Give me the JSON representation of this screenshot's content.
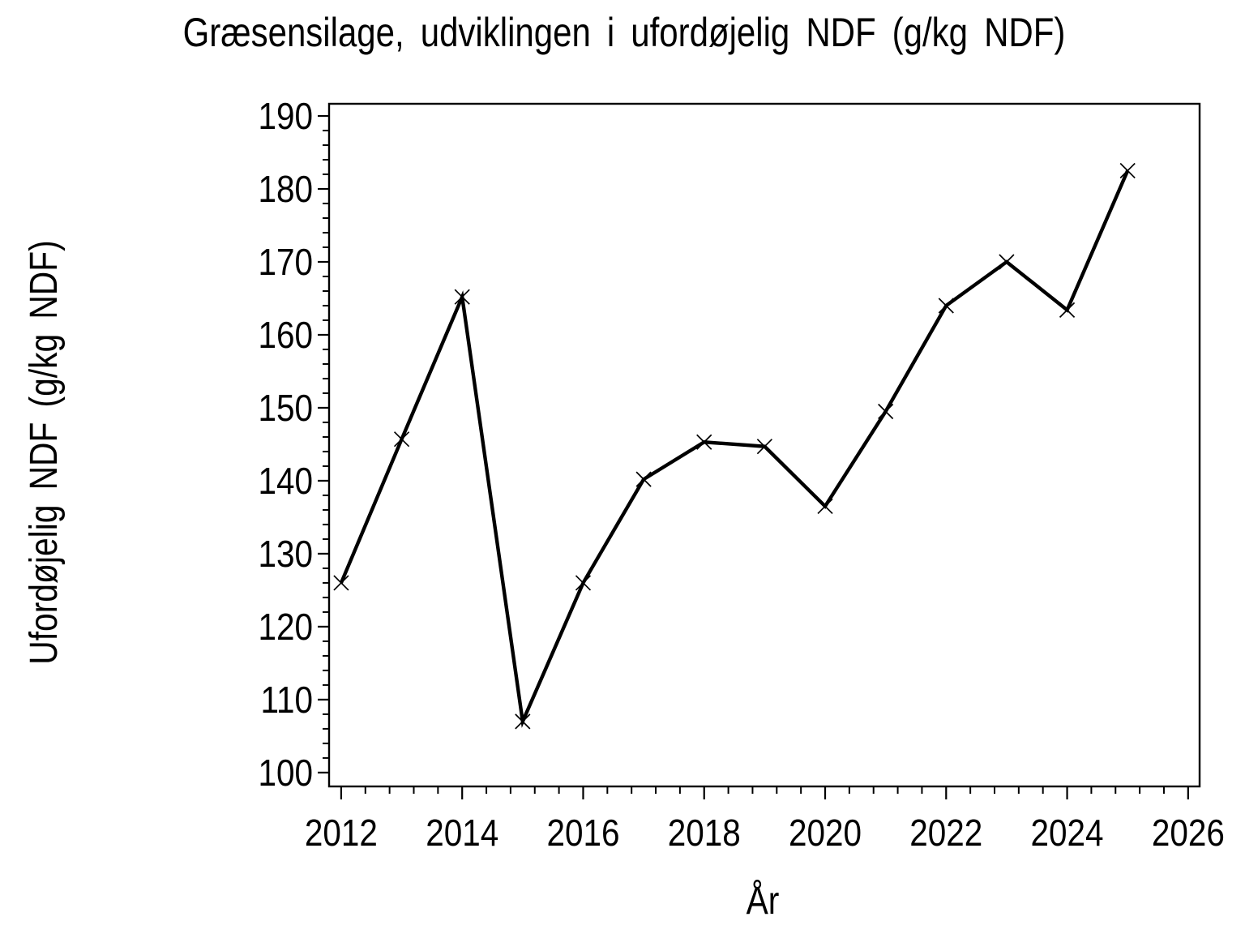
{
  "title": "Græsensilage, udviklingen i ufordøjelig NDF (g/kg NDF)",
  "chart_data": {
    "type": "line",
    "title": "Græsensilage, udviklingen i ufordøjelig NDF (g/kg NDF)",
    "xlabel": "År",
    "ylabel": "Ufordøjelig NDF (g/kg NDF)",
    "x": [
      2012,
      2013,
      2014,
      2015,
      2016,
      2017,
      2018,
      2019,
      2020,
      2021,
      2022,
      2023,
      2024,
      2025
    ],
    "series": [
      {
        "name": "Ufordøjelig NDF",
        "values": [
          126.0,
          145.7,
          165.2,
          107.0,
          126.0,
          140.2,
          145.3,
          144.7,
          136.5,
          149.5,
          164.0,
          170.0,
          163.4,
          182.5
        ]
      }
    ],
    "xticks": [
      2012,
      2014,
      2016,
      2018,
      2020,
      2022,
      2024,
      2026
    ],
    "yticks": [
      100,
      110,
      120,
      130,
      140,
      150,
      160,
      170,
      180,
      190
    ],
    "x_minor_ticks_per_interval": 4,
    "y_minor_ticks_per_interval": 4,
    "xlim": [
      2011.8,
      2026.19
    ],
    "ylim": [
      98.1,
      191.67
    ],
    "grid": false,
    "legend_position": "none",
    "marker": "x",
    "line_color": "#000000",
    "marker_color": "#000000",
    "background_color": "#ffffff",
    "frame": "box"
  }
}
